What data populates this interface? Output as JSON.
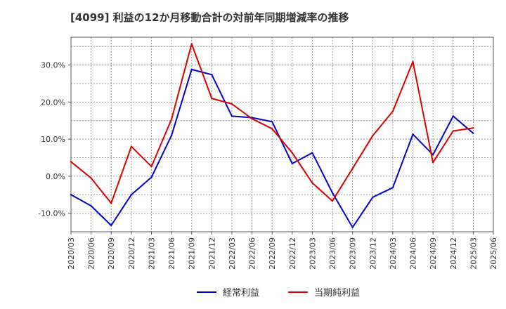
{
  "chart_data": {
    "type": "line",
    "title": "[4099]  利益の12か月移動合計の対前年同期増減率の推移",
    "xlabel": "",
    "ylabel": "",
    "ylim": [
      -15,
      37.5
    ],
    "yticks": [
      -10,
      0,
      10,
      20,
      30
    ],
    "ytick_labels": [
      "-10.0%",
      "0.0%",
      "10.0%",
      "20.0%",
      "30.0%"
    ],
    "x": [
      "2020/03",
      "2020/06",
      "2020/09",
      "2020/12",
      "2021/03",
      "2021/06",
      "2021/09",
      "2021/12",
      "2022/03",
      "2022/06",
      "2022/09",
      "2022/12",
      "2023/03",
      "2023/06",
      "2023/09",
      "2023/12",
      "2024/03",
      "2024/06",
      "2024/09",
      "2024/12",
      "2025/03",
      "2025/06"
    ],
    "grid": true,
    "legend_position": "bottom",
    "series": [
      {
        "name": "経常利益",
        "color": "#0000cc",
        "values": [
          -5.0,
          -8.0,
          -13.3,
          -5.0,
          -0.3,
          11.0,
          28.8,
          27.4,
          16.2,
          15.8,
          14.7,
          3.4,
          6.3,
          -4.5,
          -13.8,
          -5.7,
          -3.1,
          11.3,
          5.8,
          16.2,
          11.6,
          null
        ]
      },
      {
        "name": "当期純利益",
        "color": "#dd0000",
        "values": [
          3.9,
          -0.5,
          -7.3,
          8.0,
          2.6,
          15.4,
          35.7,
          21.0,
          19.5,
          15.5,
          12.8,
          6.3,
          -1.8,
          -6.7,
          2.1,
          10.9,
          17.5,
          30.9,
          3.7,
          12.2,
          13.0,
          null
        ]
      }
    ]
  }
}
